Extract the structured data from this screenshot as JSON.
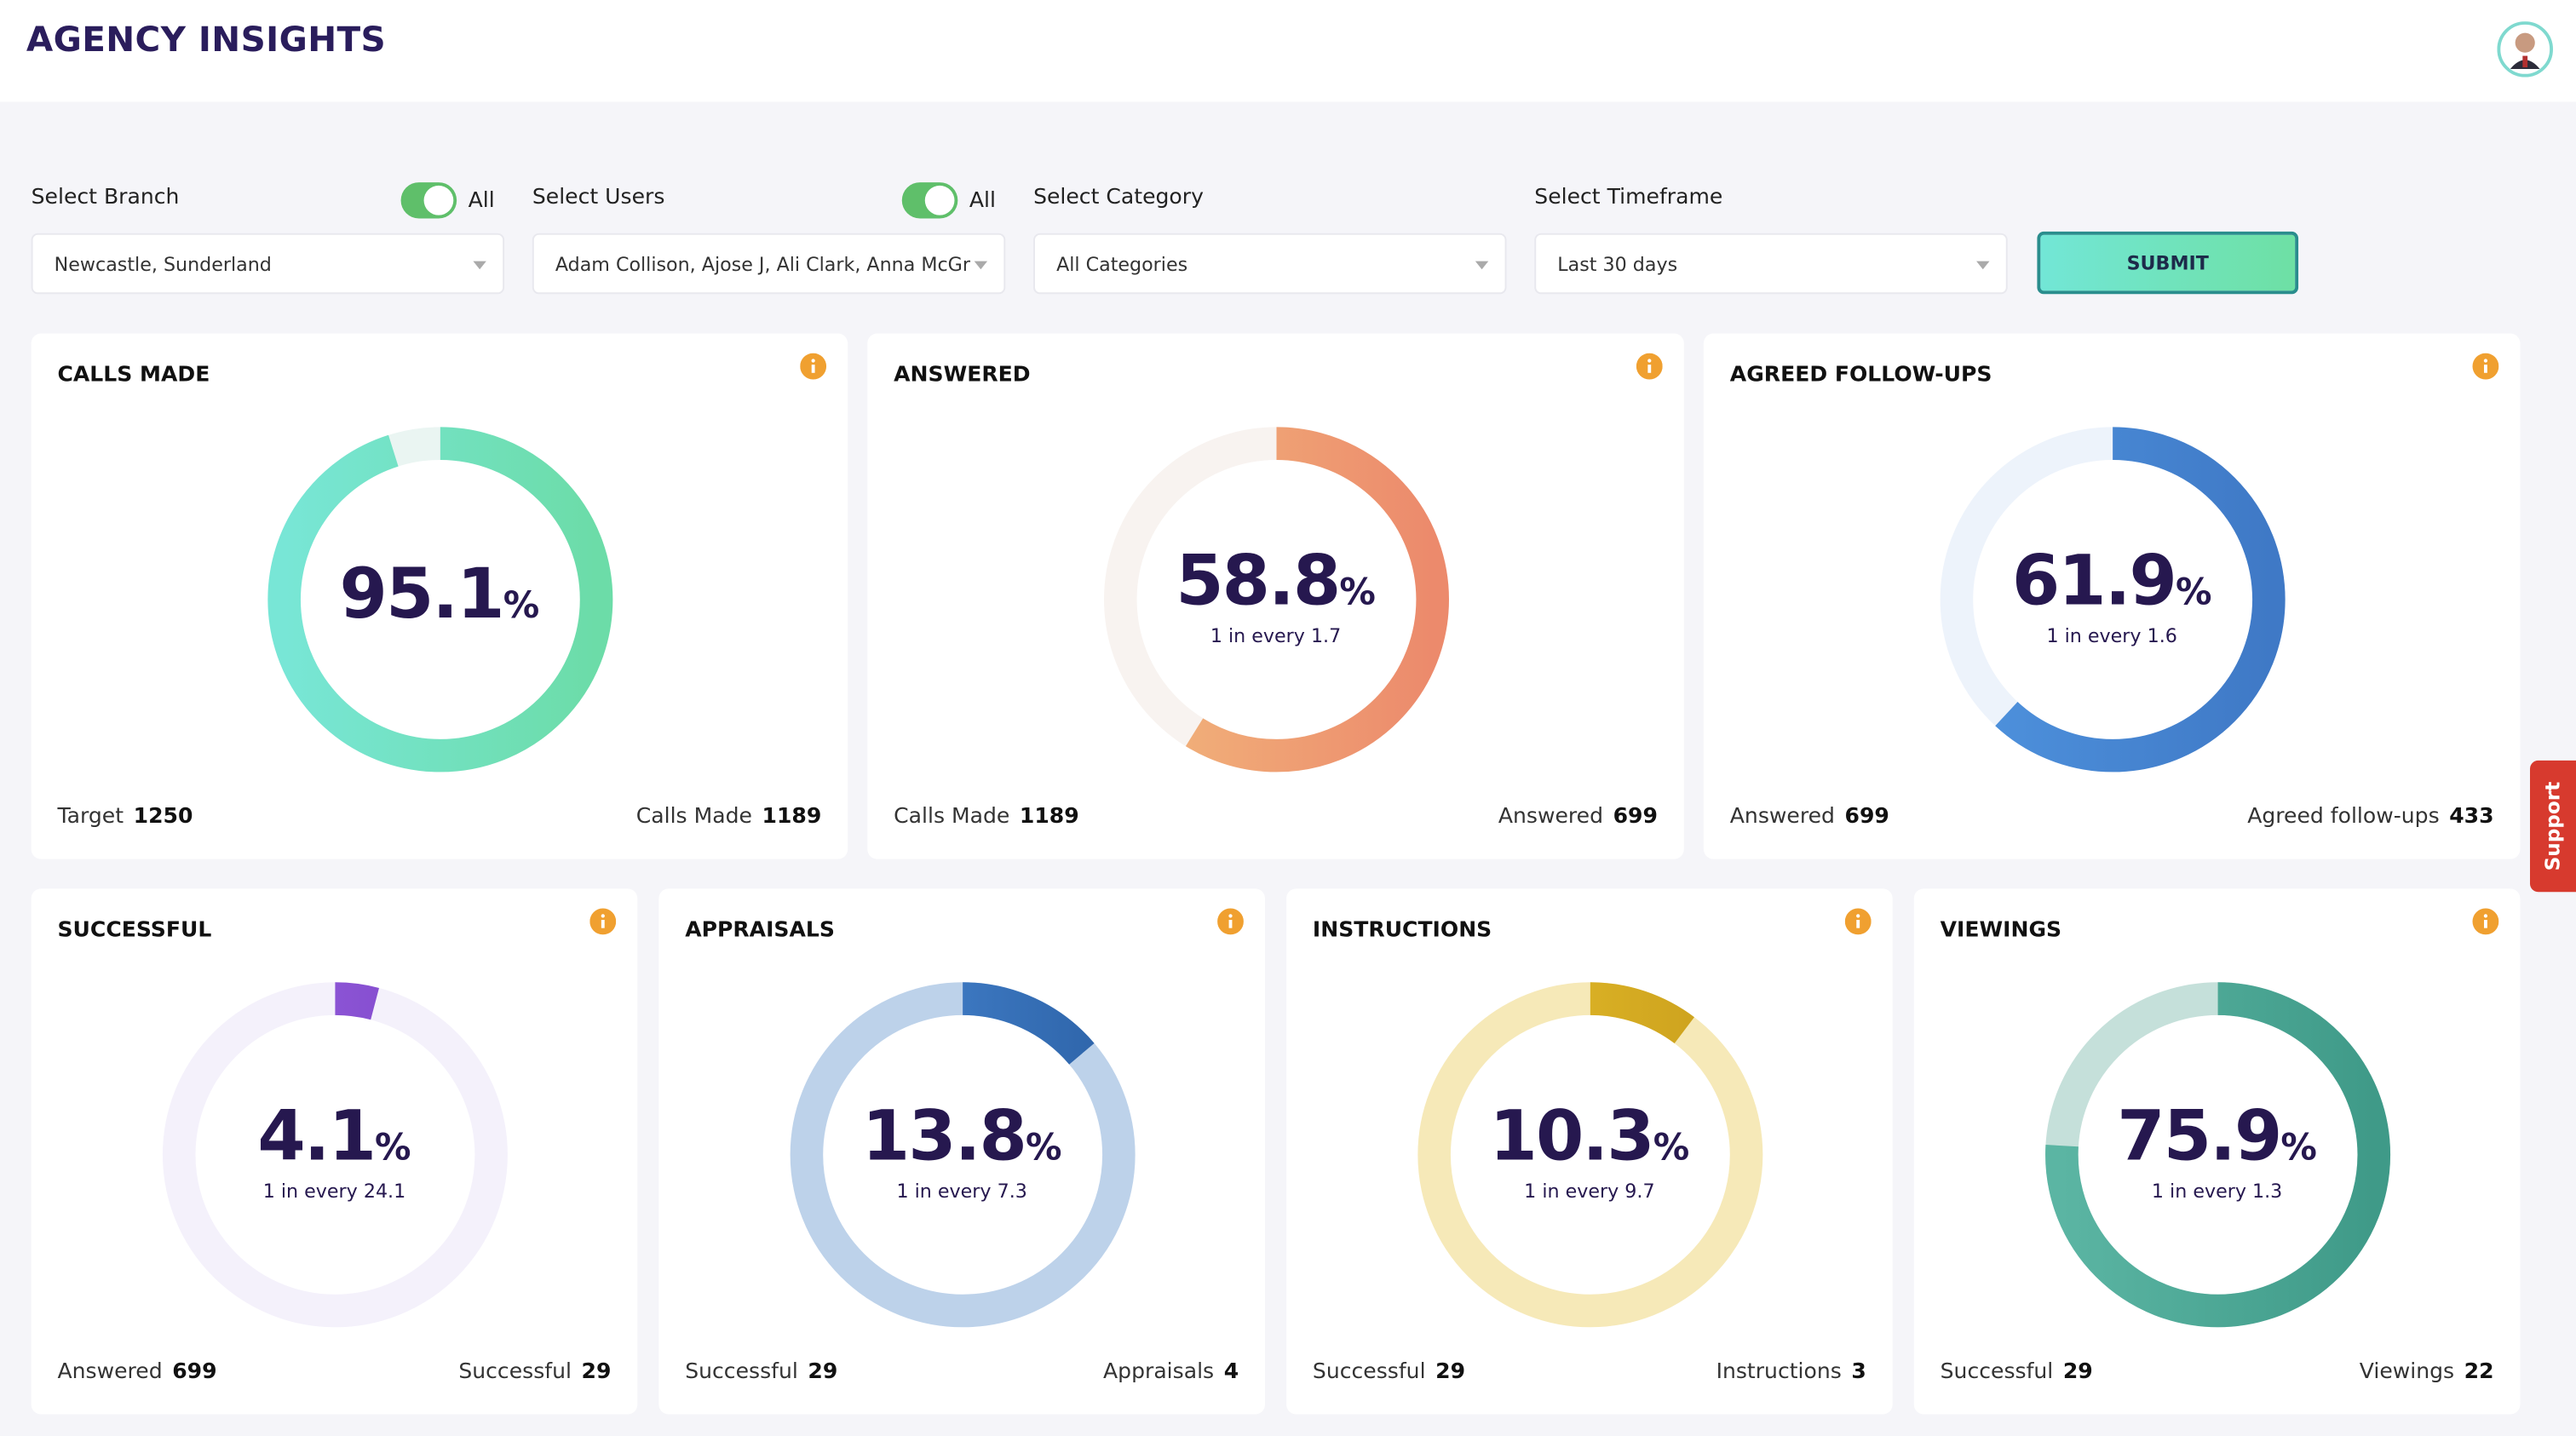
{
  "header": {
    "title": "AGENCY INSIGHTS"
  },
  "filters": [
    {
      "label": "Select Branch",
      "toggle": "All",
      "value": "Newcastle, Sunderland"
    },
    {
      "label": "Select Users",
      "toggle": "All",
      "value": "Adam Collison, Ajose J, Ali Clark, Anna McGr"
    },
    {
      "label": "Select Category",
      "value": "All Categories"
    },
    {
      "label": "Select Timeframe",
      "value": "Last 30 days"
    }
  ],
  "submit": "SUBMIT",
  "support": "Support",
  "cards": [
    {
      "title": "CALLS MADE",
      "percent": 95.1,
      "unit": "%",
      "left_label": "Target",
      "left_value": 1250,
      "right_label": "Calls Made",
      "right_value": 1189,
      "colors": [
        "#78e6d6",
        "#6cdca8"
      ],
      "track": "#eaf5f2"
    },
    {
      "title": "ANSWERED",
      "percent": 58.8,
      "unit": "%",
      "ratio": "1 in every 1.7",
      "left_label": "Calls Made",
      "left_value": 1189,
      "right_label": "Answered",
      "right_value": 699,
      "colors": [
        "#f2b77c",
        "#ec8a6c"
      ],
      "track": "#f8f3f0"
    },
    {
      "title": "AGREED FOLLOW-UPS",
      "percent": 61.9,
      "unit": "%",
      "ratio": "1 in every 1.6",
      "left_label": "Answered",
      "left_value": 699,
      "right_label": "Agreed follow-ups",
      "right_value": 433,
      "colors": [
        "#4f93de",
        "#3f79c6"
      ],
      "track": "#edf3fb"
    },
    {
      "title": "SUCCESSFUL",
      "percent": 4.1,
      "unit": "%",
      "ratio": "1 in every 24.1",
      "left_label": "Answered",
      "left_value": 699,
      "right_label": "Successful",
      "right_value": 29,
      "colors": [
        "#9a62e0",
        "#7c45c8"
      ],
      "track": "#f4f1fb"
    },
    {
      "title": "APPRAISALS",
      "percent": 13.8,
      "unit": "%",
      "ratio": "1 in every 7.3",
      "left_label": "Successful",
      "left_value": 29,
      "right_label": "Appraisals",
      "right_value": 4,
      "colors": [
        "#4a8ad6",
        "#2d63a8"
      ],
      "track": "#bdd2ea"
    },
    {
      "title": "INSTRUCTIONS",
      "percent": 10.3,
      "unit": "%",
      "ratio": "1 in every 9.7",
      "left_label": "Successful",
      "left_value": 29,
      "right_label": "Instructions",
      "right_value": 3,
      "colors": [
        "#e8c02c",
        "#c99e1c"
      ],
      "track": "#f6e9b8"
    },
    {
      "title": "VIEWINGS",
      "percent": 75.9,
      "unit": "%",
      "ratio": "1 in every 1.3",
      "left_label": "Successful",
      "left_value": 29,
      "right_label": "Viewings",
      "right_value": 22,
      "colors": [
        "#5bb5a3",
        "#3f9a88"
      ],
      "track": "#c5e0da"
    }
  ]
}
